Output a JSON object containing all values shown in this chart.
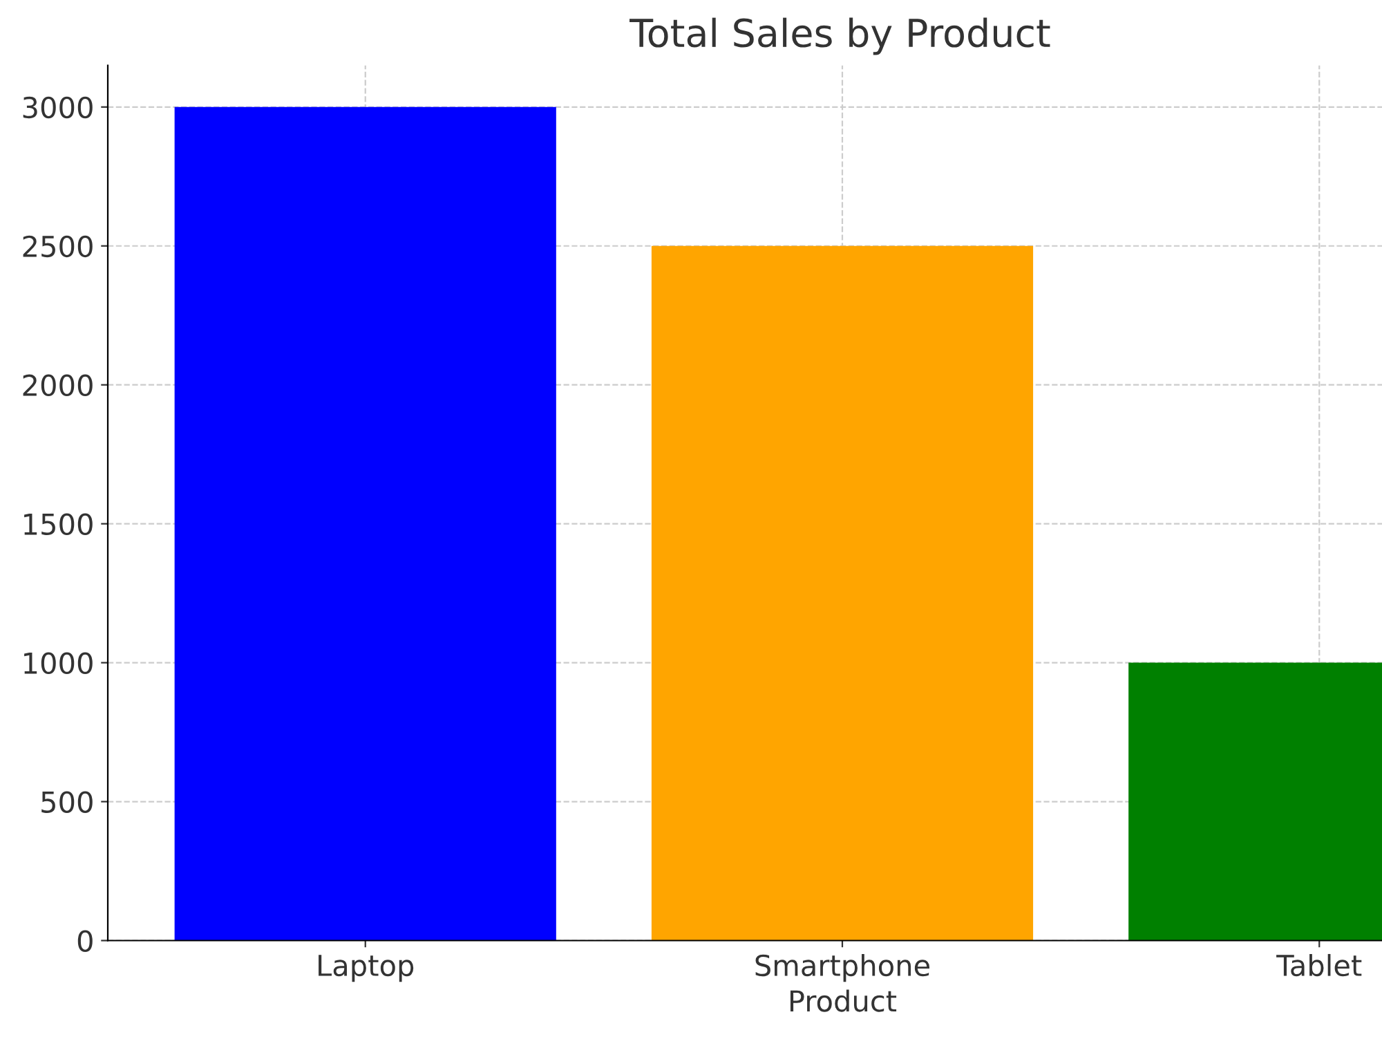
{
  "chart_data": {
    "type": "bar",
    "title": "Total Sales by Product",
    "xlabel": "Product",
    "categories": [
      "Laptop",
      "Smartphone",
      "Tablet"
    ],
    "values": [
      3000,
      2500,
      1000
    ],
    "colors": [
      "#0000ff",
      "#ffa500",
      "#008000"
    ],
    "ylim": [
      0,
      3150
    ],
    "yticks": [
      0,
      500,
      1000,
      1500,
      2000,
      2500,
      3000
    ],
    "grid": true
  }
}
